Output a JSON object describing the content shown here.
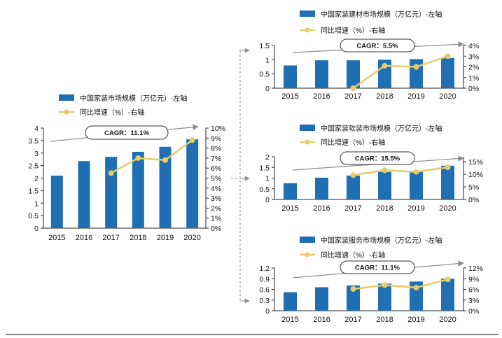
{
  "colors": {
    "bar": "#1f6fb2",
    "line": "#e5cd6a",
    "arrow": "#8c8c8c",
    "axis": "#222222",
    "bottom_rule": "#333333"
  },
  "chart_data": [
    {
      "id": "total",
      "type": "bar+line",
      "legend": {
        "bar_label": "中国家装市场规模（万亿元）-左轴",
        "line_label": "同比增速（%）-右轴"
      },
      "cagr_label": "CAGR：11.1%",
      "categories": [
        "2015",
        "2016",
        "2017",
        "2018",
        "2019",
        "2020"
      ],
      "bar_values": [
        2.1,
        2.68,
        2.85,
        3.05,
        3.25,
        3.55
      ],
      "line_values": [
        null,
        null,
        5.5,
        7.0,
        6.8,
        8.8
      ],
      "y_left": {
        "min": 0,
        "max": 4,
        "ticks": [
          "0",
          "0.5",
          "1",
          "1.5",
          "2",
          "2.5",
          "3",
          "3.5",
          "4"
        ]
      },
      "y_right": {
        "min": 0,
        "max": 10,
        "ticks": [
          "0%",
          "1%",
          "2%",
          "3%",
          "4%",
          "5%",
          "6%",
          "7%",
          "8%",
          "9%",
          "10%"
        ]
      }
    },
    {
      "id": "materials",
      "type": "bar+line",
      "legend": {
        "bar_label": "中国家装建材市场规模（万亿元）-左轴",
        "line_label": "同比增速（%）-右轴"
      },
      "cagr_label": "CAGR：5.5%",
      "categories": [
        "2015",
        "2016",
        "2017",
        "2018",
        "2019",
        "2020"
      ],
      "bar_values": [
        0.8,
        0.98,
        0.98,
        1.0,
        1.02,
        1.06
      ],
      "line_values": [
        null,
        null,
        0.0,
        2.1,
        2.0,
        3.0
      ],
      "y_left": {
        "min": 0,
        "max": 1.5,
        "ticks": [
          "0",
          "0.5",
          "1",
          "1.5"
        ]
      },
      "y_right": {
        "min": 0,
        "max": 4,
        "ticks": [
          "0%",
          "1%",
          "2%",
          "3%",
          "4%"
        ]
      }
    },
    {
      "id": "soft",
      "type": "bar+line",
      "legend": {
        "bar_label": "中国家装软装市场规模（万亿元）-左轴",
        "line_label": "同比增速（%）-右轴"
      },
      "cagr_label": "CAGR：15.5%",
      "categories": [
        "2015",
        "2016",
        "2017",
        "2018",
        "2019",
        "2020"
      ],
      "bar_values": [
        0.76,
        1.02,
        1.12,
        1.29,
        1.32,
        1.58
      ],
      "line_values": [
        null,
        null,
        9.7,
        11.6,
        11.0,
        12.8
      ],
      "y_left": {
        "min": 0,
        "max": 2,
        "ticks": [
          "0",
          "0.5",
          "1",
          "1.5",
          "2"
        ]
      },
      "y_right": {
        "min": 0,
        "max": 17,
        "ticks": [
          "0%",
          "5%",
          "10%",
          "15%"
        ],
        "tick_values": [
          0,
          5,
          10,
          15
        ]
      }
    },
    {
      "id": "service",
      "type": "bar+line",
      "legend": {
        "bar_label": "中国家装服务市场规模（万亿元）-左轴",
        "line_label": "同比增速（%）-右轴"
      },
      "cagr_label": "CAGR：11.1%",
      "categories": [
        "2015",
        "2016",
        "2017",
        "2018",
        "2019",
        "2020"
      ],
      "bar_values": [
        0.52,
        0.66,
        0.71,
        0.76,
        0.82,
        0.9
      ],
      "line_values": [
        null,
        null,
        6.1,
        7.2,
        6.5,
        8.8
      ],
      "y_left": {
        "min": 0,
        "max": 1.2,
        "ticks": [
          "0",
          "0.3",
          "0.6",
          "0.9",
          "1.2"
        ]
      },
      "y_right": {
        "min": 0,
        "max": 12,
        "ticks": [
          "0%",
          "3%",
          "6%",
          "9%",
          "12%"
        ]
      }
    }
  ]
}
